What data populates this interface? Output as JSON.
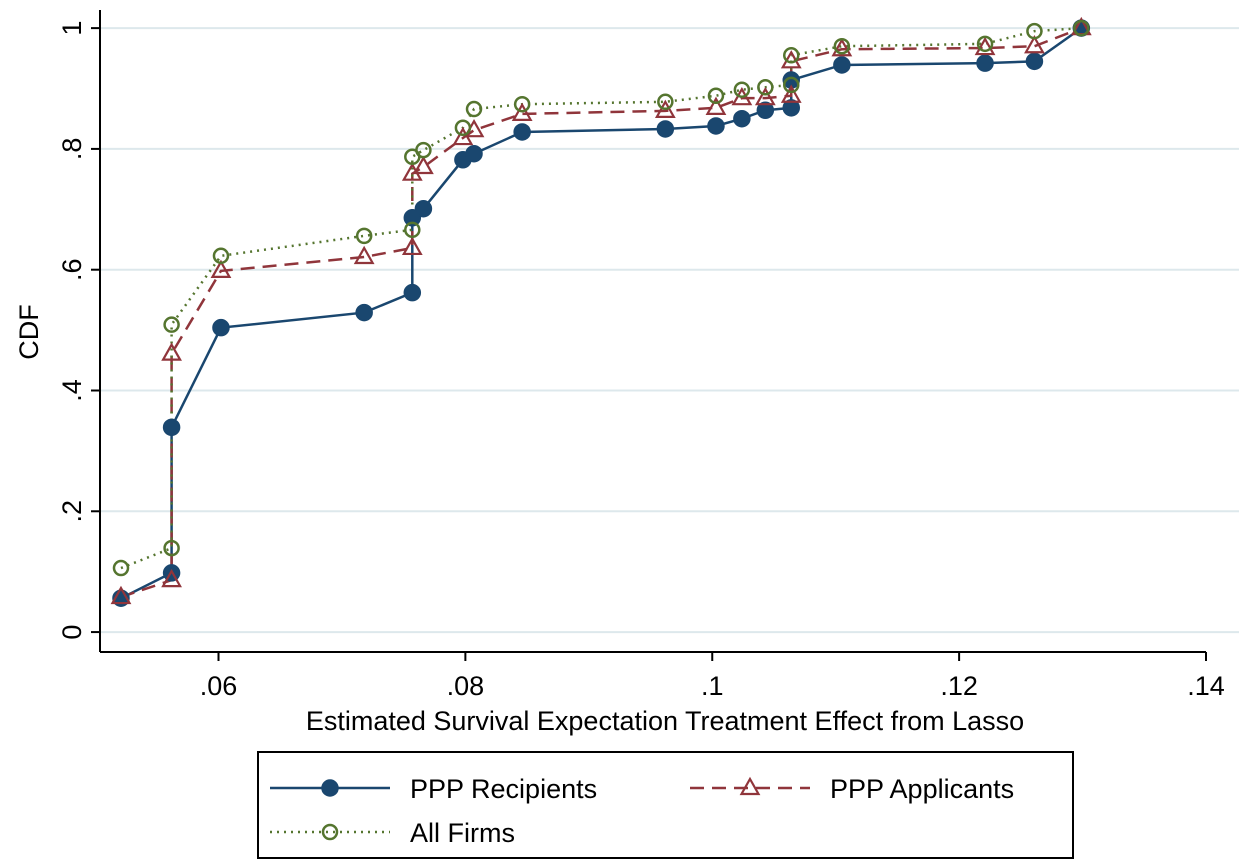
{
  "chart_data": {
    "type": "line",
    "x_label": "Estimated Survival Expectation Treatment Effect from Lasso",
    "y_label": "CDF",
    "xlim": [
      0.0504,
      0.14
    ],
    "ylim": [
      -0.033,
      1.03
    ],
    "xticks": [
      {
        "value": 0.06,
        "label": ".06"
      },
      {
        "value": 0.08,
        "label": ".08"
      },
      {
        "value": 0.1,
        "label": ".1"
      },
      {
        "value": 0.12,
        "label": ".12"
      },
      {
        "value": 0.14,
        "label": ".14"
      }
    ],
    "yticks": [
      0,
      {
        "value": 0.2,
        "label": ".2"
      },
      {
        "value": 0.4,
        "label": ".4"
      },
      {
        "value": 0.6,
        "label": ".6"
      },
      {
        "value": 0.8,
        "label": ".8"
      },
      1
    ],
    "grid": true,
    "legend_position": "bottom",
    "x": [
      0.0521,
      0.0562,
      0.0562,
      0.0602,
      0.0718,
      0.0757,
      0.0757,
      0.0766,
      0.0798,
      0.0807,
      0.0846,
      0.0962,
      0.1003,
      0.1024,
      0.1043,
      0.1064,
      0.1064,
      0.1105,
      0.1221,
      0.1261,
      0.1299
    ],
    "series": [
      {
        "name": "PPP Recipients",
        "color": "#1a476f",
        "marker": "filled-circle",
        "dash": "solid",
        "values": [
          0.056,
          0.098,
          0.339,
          0.504,
          0.529,
          0.562,
          0.686,
          0.701,
          0.782,
          0.792,
          0.828,
          0.833,
          0.838,
          0.85,
          0.864,
          0.868,
          0.914,
          0.939,
          0.942,
          0.945,
          1.0
        ]
      },
      {
        "name": "PPP Applicants",
        "color": "#90353b",
        "marker": "hollow-triangle",
        "dash": "dash",
        "values": [
          0.058,
          0.086,
          0.461,
          0.598,
          0.621,
          0.636,
          0.759,
          0.77,
          0.818,
          0.831,
          0.858,
          0.863,
          0.868,
          0.884,
          0.884,
          0.888,
          0.945,
          0.965,
          0.967,
          0.97,
          1.0
        ]
      },
      {
        "name": "All Firms",
        "color": "#55752f",
        "marker": "hollow-circle",
        "dash": "dot",
        "values": [
          0.106,
          0.139,
          0.509,
          0.623,
          0.656,
          0.666,
          0.787,
          0.798,
          0.835,
          0.866,
          0.874,
          0.878,
          0.888,
          0.898,
          0.902,
          0.906,
          0.955,
          0.97,
          0.974,
          0.995,
          1.0
        ]
      }
    ]
  }
}
